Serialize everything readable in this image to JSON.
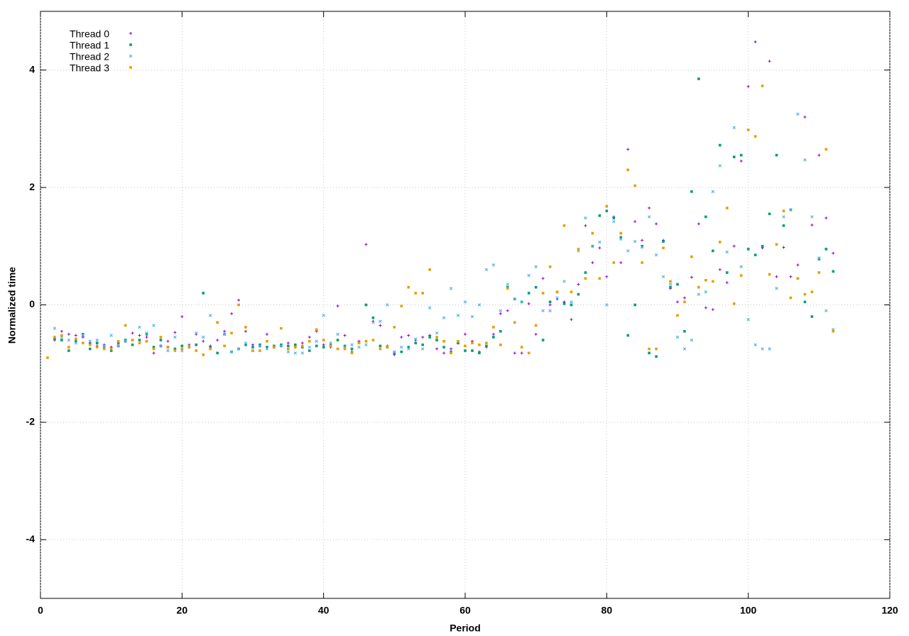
{
  "chart_data": {
    "type": "scatter",
    "xlabel": "Period",
    "ylabel": "Normalized time",
    "xlim": [
      0,
      120
    ],
    "xticks": [
      0,
      20,
      40,
      60,
      80,
      100,
      120
    ],
    "ylim": [
      -5,
      5
    ],
    "yticks": [
      -4,
      -2,
      0,
      2,
      4
    ],
    "grid": true,
    "legend": "upper left",
    "x": [
      1,
      2,
      3,
      4,
      5,
      6,
      7,
      8,
      9,
      10,
      11,
      12,
      13,
      14,
      15,
      16,
      17,
      18,
      19,
      20,
      21,
      22,
      23,
      24,
      25,
      26,
      27,
      28,
      29,
      30,
      31,
      32,
      33,
      34,
      35,
      36,
      37,
      38,
      39,
      40,
      41,
      42,
      43,
      44,
      45,
      46,
      47,
      48,
      49,
      50,
      51,
      52,
      53,
      54,
      55,
      56,
      57,
      58,
      59,
      60,
      61,
      62,
      63,
      64,
      65,
      66,
      67,
      68,
      69,
      70,
      71,
      72,
      73,
      74,
      75,
      76,
      77,
      78,
      79,
      80,
      81,
      82,
      83,
      84,
      85,
      86,
      87,
      88,
      89,
      90,
      91,
      92,
      93,
      94,
      95,
      96,
      97,
      98,
      99,
      100,
      101,
      102,
      103,
      104,
      105,
      106,
      107,
      108,
      109,
      110,
      111,
      112
    ],
    "series": [
      {
        "name": "Thread 0",
        "color": "#9400d3",
        "marker": "plus",
        "values": [
          null,
          -0.6,
          -0.45,
          -0.5,
          -0.52,
          -0.55,
          -0.65,
          -0.7,
          -0.68,
          -0.72,
          -0.7,
          -0.62,
          -0.48,
          -0.52,
          -0.55,
          -0.82,
          -0.7,
          -0.62,
          -0.47,
          -0.2,
          -0.68,
          -0.5,
          -0.62,
          -0.7,
          -0.6,
          -0.45,
          -0.15,
          0.08,
          -0.45,
          -0.68,
          -0.7,
          -0.5,
          -0.72,
          -0.7,
          -0.65,
          -0.72,
          -0.65,
          -0.55,
          -0.45,
          -0.68,
          -0.72,
          -0.02,
          -0.52,
          -0.8,
          -0.62,
          1.03,
          -0.28,
          -0.35,
          -0.7,
          -0.85,
          -0.55,
          -0.52,
          -0.6,
          -0.55,
          -0.52,
          -0.75,
          -0.82,
          -0.75,
          -0.65,
          -0.5,
          -0.62,
          -0.8,
          -0.72,
          -0.5,
          -0.15,
          -0.1,
          -0.82,
          -0.82,
          0.02,
          -0.5,
          0.45,
          0.0,
          0.1,
          0.05,
          -0.25,
          0.35,
          1.35,
          0.72,
          0.97,
          0.48,
          1.5,
          0.72,
          2.65,
          1.42,
          1.1,
          1.65,
          1.38,
          1.1,
          0.28,
          0.05,
          0.12,
          0.47,
          1.38,
          -0.05,
          -0.08,
          0.6,
          0.38,
          1.0,
          2.45,
          3.72,
          4.48,
          0.97,
          4.15,
          0.48,
          0.98,
          0.48,
          0.68,
          3.2,
          1.36,
          2.55,
          1.48,
          0.88
        ]
      },
      {
        "name": "Thread 1",
        "color": "#009e73",
        "marker": "square",
        "values": [
          null,
          -0.58,
          -0.6,
          -0.78,
          -0.62,
          -0.5,
          -0.75,
          -0.65,
          -0.72,
          -0.78,
          -0.65,
          -0.6,
          -0.68,
          -0.6,
          -0.5,
          -0.72,
          -0.6,
          -0.72,
          -0.75,
          -0.7,
          -0.72,
          -0.68,
          0.2,
          -0.72,
          -0.82,
          -0.5,
          -0.8,
          -0.75,
          -0.68,
          -0.72,
          -0.68,
          -0.72,
          -0.7,
          -0.68,
          -0.7,
          -0.68,
          -0.72,
          -0.78,
          -0.7,
          -0.72,
          -0.68,
          -0.6,
          -0.7,
          -0.75,
          -0.65,
          0.0,
          -0.22,
          -0.7,
          -0.72,
          -0.82,
          -0.8,
          -0.72,
          -0.65,
          -0.68,
          -0.55,
          -0.6,
          -0.72,
          -0.8,
          -0.65,
          -0.78,
          -0.78,
          -0.82,
          -0.7,
          -0.55,
          -0.45,
          0.3,
          0.1,
          0.05,
          0.2,
          0.3,
          -0.6,
          0.05,
          0.22,
          0.02,
          0.0,
          0.18,
          0.55,
          1.0,
          1.52,
          1.6,
          1.48,
          1.15,
          -0.52,
          0.0,
          1.0,
          -0.82,
          -0.88,
          1.08,
          0.3,
          0.35,
          -0.45,
          1.93,
          3.85,
          1.5,
          0.92,
          2.72,
          0.55,
          2.52,
          2.55,
          0.95,
          0.85,
          1.0,
          1.55,
          2.55,
          1.35,
          1.62,
          0.45,
          0.05,
          -0.2,
          0.78,
          0.95,
          0.57
        ]
      },
      {
        "name": "Thread 2",
        "color": "#56b4e9",
        "marker": "cross",
        "values": [
          null,
          -0.4,
          -0.55,
          -0.6,
          -0.65,
          -0.52,
          -0.62,
          -0.6,
          -0.7,
          -0.52,
          -0.7,
          -0.62,
          -0.6,
          -0.38,
          -0.48,
          -0.35,
          -0.7,
          -0.78,
          -0.55,
          -0.78,
          -0.7,
          -0.48,
          -0.55,
          -0.18,
          -0.3,
          -0.5,
          -0.8,
          -0.75,
          -0.65,
          -0.78,
          -0.7,
          -0.75,
          -0.72,
          -0.7,
          -0.8,
          -0.82,
          -0.82,
          -0.72,
          -0.62,
          -0.18,
          -0.65,
          -0.5,
          -0.72,
          -0.68,
          -0.72,
          -0.68,
          -0.3,
          -0.28,
          0.0,
          -0.8,
          -0.72,
          -0.75,
          -0.58,
          -0.75,
          -0.05,
          -0.48,
          -0.22,
          0.28,
          -0.18,
          0.05,
          -0.2,
          0.0,
          0.6,
          0.68,
          -0.1,
          0.35,
          0.1,
          0.05,
          0.5,
          0.65,
          -0.1,
          -0.1,
          0.12,
          0.4,
          0.05,
          0.92,
          1.48,
          1.0,
          1.07,
          0.0,
          1.42,
          1.12,
          0.92,
          1.08,
          0.98,
          1.5,
          0.85,
          0.48,
          0.35,
          -0.55,
          -0.75,
          -0.6,
          0.18,
          0.22,
          1.93,
          2.37,
          0.9,
          3.02,
          0.65,
          -0.25,
          -0.68,
          -0.75,
          -0.75,
          0.28,
          1.5,
          1.62,
          3.25,
          2.47,
          1.5,
          0.8,
          -0.1,
          -0.42
        ]
      },
      {
        "name": "Thread 3",
        "color": "#e69f00",
        "marker": "square",
        "values": [
          -0.9,
          -0.55,
          -0.52,
          -0.72,
          -0.58,
          -0.65,
          -0.68,
          -0.72,
          -0.75,
          -0.75,
          -0.62,
          -0.35,
          -0.6,
          -0.65,
          -0.62,
          -0.75,
          -0.55,
          -0.72,
          -0.78,
          -0.75,
          -0.72,
          -0.78,
          -0.85,
          -0.75,
          -0.3,
          -0.7,
          -0.48,
          0.0,
          -0.38,
          -0.78,
          -0.78,
          -0.62,
          -0.72,
          -0.4,
          -0.75,
          -0.72,
          -0.7,
          -0.62,
          -0.42,
          -0.6,
          -0.7,
          -0.75,
          -0.75,
          -0.82,
          -0.65,
          -0.62,
          -0.6,
          -0.75,
          -0.72,
          -0.38,
          -0.02,
          0.3,
          0.2,
          0.2,
          0.6,
          -0.55,
          -0.62,
          -0.82,
          -0.62,
          -0.7,
          -0.65,
          -0.68,
          -0.65,
          -0.38,
          -0.68,
          0.28,
          -0.3,
          -0.72,
          -0.82,
          -0.35,
          0.2,
          0.65,
          0.22,
          1.35,
          0.22,
          0.95,
          0.45,
          1.22,
          0.45,
          1.68,
          0.72,
          1.22,
          2.3,
          2.03,
          0.72,
          -0.75,
          -0.75,
          0.97,
          0.4,
          -0.18,
          0.05,
          0.82,
          0.3,
          0.42,
          0.4,
          1.07,
          1.65,
          0.02,
          0.5,
          2.98,
          2.87,
          3.73,
          0.52,
          1.03,
          1.6,
          0.12,
          0.45,
          0.18,
          0.22,
          0.55,
          2.65,
          -0.45
        ]
      }
    ]
  }
}
